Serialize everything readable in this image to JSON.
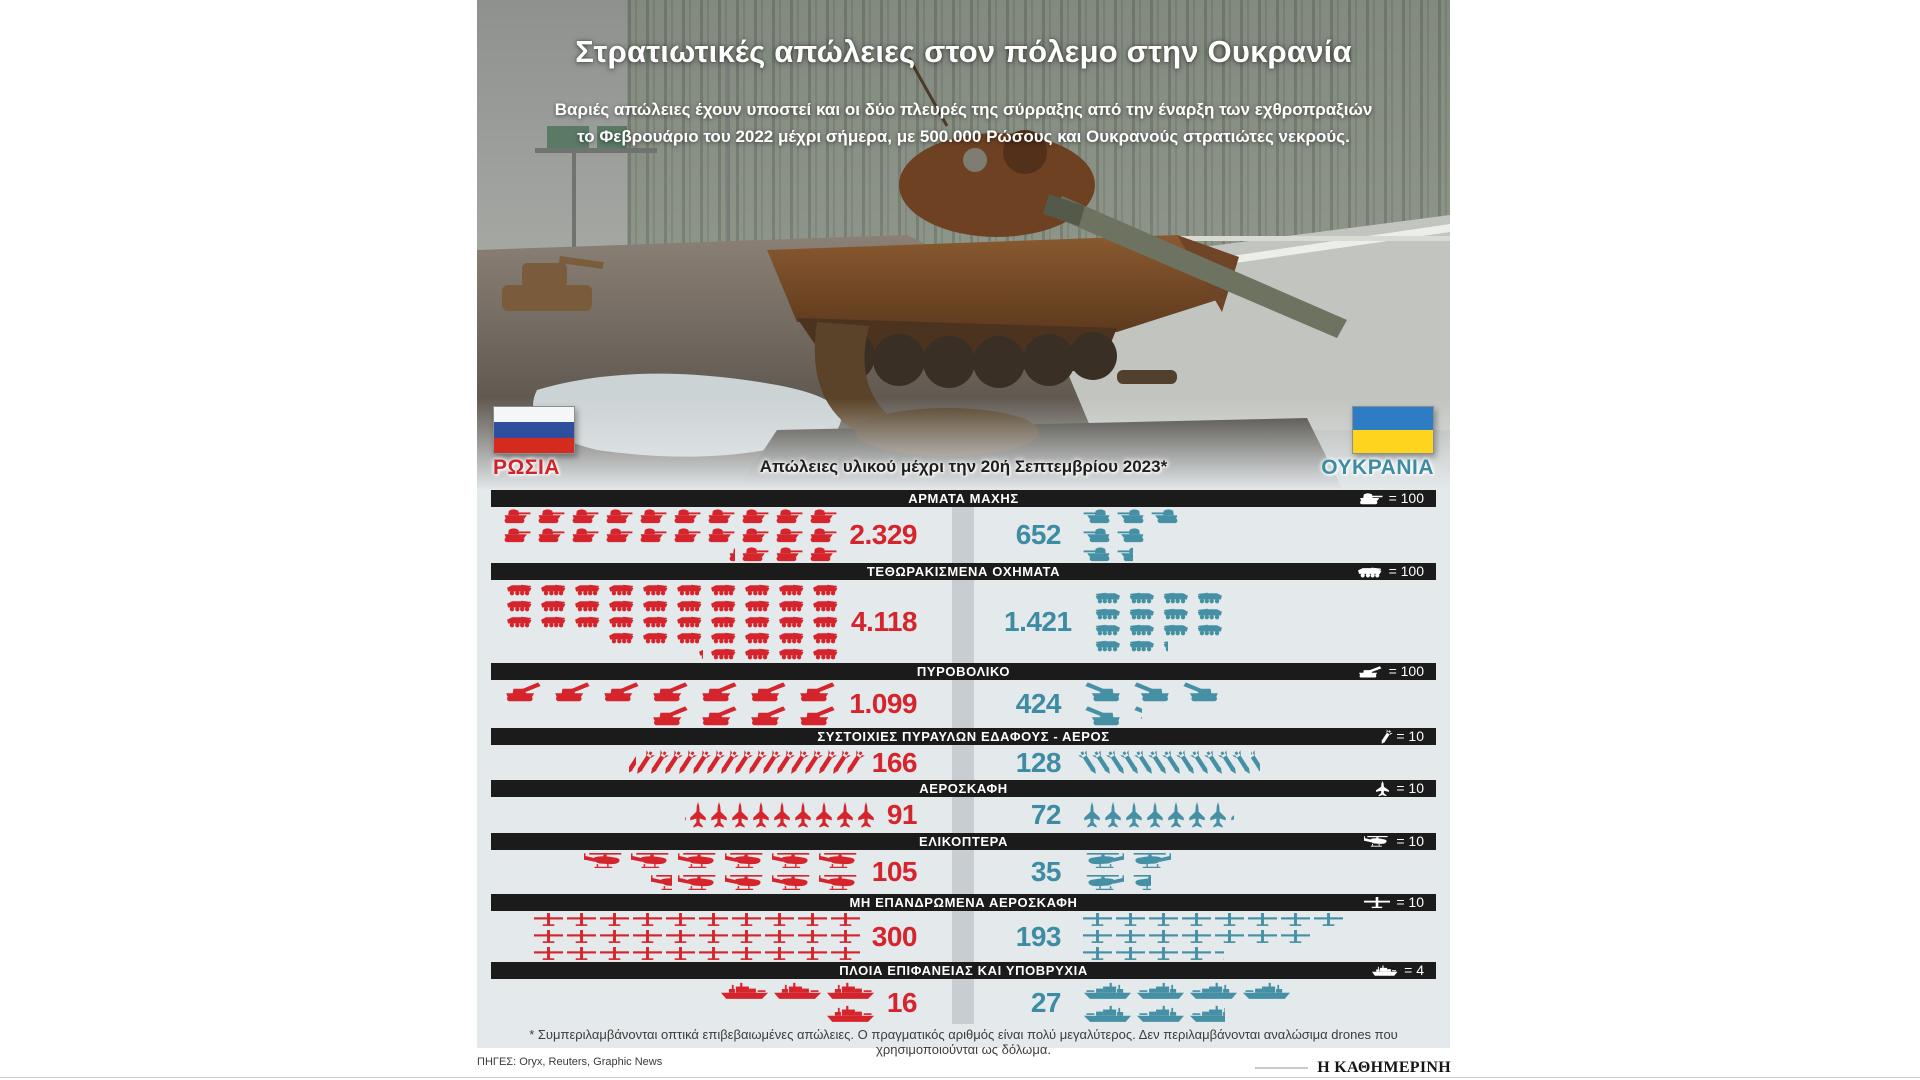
{
  "header": {
    "title": "Στρατιωτικές απώλειες στον πόλεμο στην Ουκρανία",
    "subtitle_line1": "Βαριές απώλειες έχουν υποστεί και οι δύο πλευρές της σύρραξης από την έναρξη των εχθροπραξιών",
    "subtitle_line2": "το Φεβρουάριο του 2022 μέχρι σήμερα, με 500.000 Ρώσους και Ουκρανούς στρατιώτες νεκρούς."
  },
  "sides": {
    "russia_label": "ΡΩΣΙΑ",
    "ukraine_label": "ΟΥΚΡΑΝΙΑ"
  },
  "period_title": "Απώλειες υλικού μέχρι την 20ή Σεπτεμβρίου 2023*",
  "colors": {
    "russia": "#d5242c",
    "ukraine": "#4590a5",
    "bar_bg": "#1b1b1b",
    "board_bg": "#e4e9ec",
    "divider": "#c7cdd1",
    "russia_flag": [
      "#f5f6f7",
      "#2f4f9e",
      "#d52b1e"
    ],
    "ukraine_flag": [
      "#2e7cc3",
      "#ffd41f"
    ]
  },
  "chart_data": {
    "type": "pictogram",
    "note": "Each icon represents per_icon units; fractional row values are drawn as partial icons",
    "categories": [
      {
        "label": "ΑΡΜΑΤΑ ΜΑΧΗΣ",
        "icon": "tank-icon",
        "per_icon": 100,
        "legend": "= 100",
        "russia": {
          "value": 2329,
          "display": "2.329",
          "rows": [
            10,
            10,
            3.29
          ]
        },
        "ukraine": {
          "value": 652,
          "display": "652",
          "rows": [
            3,
            2,
            1.52
          ]
        }
      },
      {
        "label": "ΤΕΘΩΡΑΚΙΣΜΕΝΑ ΟΧΗΜΑΤΑ",
        "icon": "apc-icon",
        "per_icon": 100,
        "legend": "= 100",
        "russia": {
          "value": 4118,
          "display": "4.118",
          "rows": [
            10,
            10,
            10,
            7,
            4.18
          ]
        },
        "ukraine": {
          "value": 1421,
          "display": "1.421",
          "rows": [
            4,
            4,
            4,
            2.21
          ]
        }
      },
      {
        "label": "ΠΥΡΟΒΟΛΙΚΟ",
        "icon": "artillery-icon",
        "per_icon": 100,
        "legend": "= 100",
        "russia": {
          "value": 1099,
          "display": "1.099",
          "rows": [
            7,
            3.99
          ]
        },
        "ukraine": {
          "value": 424,
          "display": "424",
          "rows": [
            3,
            1.24
          ]
        }
      },
      {
        "label": "ΣΥΣΤΟΙΧΙΕΣ ΠΥΡΑΥΛΩΝ ΕΔΑΦΟΥΣ - ΑΕΡΟΣ",
        "icon": "missile-icon",
        "per_icon": 10,
        "legend": "= 10",
        "russia": {
          "value": 166,
          "display": "166",
          "rows": [
            16.6
          ]
        },
        "ukraine": {
          "value": 128,
          "display": "128",
          "rows": [
            12.8
          ]
        }
      },
      {
        "label": "ΑΕΡΟΣΚΑΦΗ",
        "icon": "jet-icon",
        "per_icon": 10,
        "legend": "= 10",
        "russia": {
          "value": 91,
          "display": "91",
          "rows": [
            9.1
          ]
        },
        "ukraine": {
          "value": 72,
          "display": "72",
          "rows": [
            7.2
          ]
        }
      },
      {
        "label": "ΕΛΙΚΟΠΤΕΡΑ",
        "icon": "helicopter-icon",
        "per_icon": 10,
        "legend": "= 10",
        "russia": {
          "value": 105,
          "display": "105",
          "rows": [
            6,
            4.5
          ]
        },
        "ukraine": {
          "value": 35,
          "display": "35",
          "rows": [
            2,
            1.5
          ]
        }
      },
      {
        "label": "ΜΗ ΕΠΑΝΔΡΩΜΕΝΑ ΑΕΡΟΣΚΑΦΗ",
        "icon": "drone-icon",
        "per_icon": 10,
        "legend": "= 10",
        "russia": {
          "value": 300,
          "display": "300",
          "rows": [
            10,
            10,
            10
          ]
        },
        "ukraine": {
          "value": 193,
          "display": "193",
          "rows": [
            8,
            7,
            4.3
          ]
        }
      },
      {
        "label": "ΠΛΟΙΑ ΕΠΙΦΑΝΕΙΑΣ ΚΑΙ ΥΠΟΒΡΥΧΙΑ",
        "icon": "ship-icon",
        "per_icon": 4,
        "legend": "= 4",
        "russia": {
          "value": 16,
          "display": "16",
          "rows": [
            3,
            1
          ]
        },
        "ukraine": {
          "value": 27,
          "display": "27",
          "rows": [
            4,
            2.75
          ]
        }
      }
    ]
  },
  "footnote": "* Συμπεριλαμβάνονται οπτικά επιβεβαιωμένες απώλειες. Ο πραγματικός αριθμός είναι πολύ μεγαλύτερος. Δεν περιλαμβάνονται αναλώσιμα drones που χρησιμοποιούνται ως δόλωμα.",
  "sources": "ΠΗΓΕΣ: Oryx, Reuters, Graphic News",
  "brand": "Η ΚΑΘΗΜΕΡΙΝΗ"
}
